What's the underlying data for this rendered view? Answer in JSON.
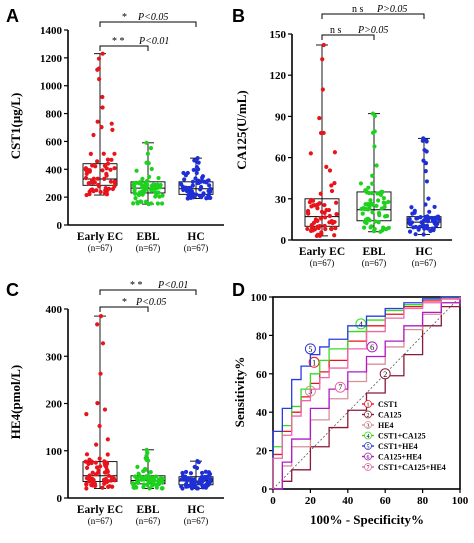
{
  "colors": {
    "early_ec": "#e8141c",
    "ebl": "#1fd11f",
    "hc": "#1e2fd6"
  },
  "panels": {
    "A": {
      "letter": "A",
      "ylabel": "CST1(μg/L)",
      "sig_outer": {
        "stars": "*",
        "p": "P<0.05"
      },
      "sig_inner": {
        "stars": "* *",
        "p": "P<0.01"
      }
    },
    "B": {
      "letter": "B",
      "ylabel": "CA125(U/mL)",
      "sig_outer": {
        "stars": "n s",
        "p": "P>0.05"
      },
      "sig_inner": {
        "stars": "n s",
        "p": "P>0.05"
      }
    },
    "C": {
      "letter": "C",
      "ylabel": "HE4(pmol/L)",
      "sig_outer": {
        "stars": "* *",
        "p": "P<0.01"
      },
      "sig_inner": {
        "stars": "*",
        "p": "P<0.05"
      }
    },
    "D": {
      "letter": "D",
      "xlabel": "100% - Specificity%",
      "ylabel": "Sensitivity%"
    }
  },
  "groups": [
    {
      "name": "Early EC",
      "n": "(n=67)"
    },
    {
      "name": "EBL",
      "n": "(n=67)"
    },
    {
      "name": "HC",
      "n": "(n=67)"
    }
  ],
  "chart_data": [
    {
      "type": "scatter",
      "title": "",
      "ylabel": "CST1(μg/L)",
      "categories": [
        "Early EC",
        "EBL",
        "HC"
      ],
      "ylim": [
        0,
        1400
      ],
      "yticks": [
        0,
        200,
        400,
        600,
        800,
        1000,
        1200,
        1400
      ],
      "series": [
        {
          "name": "Early EC",
          "box": {
            "min": 215,
            "q1": 285,
            "median": 330,
            "q3": 440,
            "max": 1230
          }
        },
        {
          "name": "EBL",
          "box": {
            "min": 150,
            "q1": 230,
            "median": 265,
            "q3": 310,
            "max": 590
          }
        },
        {
          "name": "HC",
          "box": {
            "min": 190,
            "q1": 220,
            "median": 260,
            "q3": 310,
            "max": 480
          }
        }
      ],
      "annotations": [
        "* P<0.05",
        "* * P<0.01"
      ]
    },
    {
      "type": "scatter",
      "title": "",
      "ylabel": "CA125(U/mL)",
      "categories": [
        "Early EC",
        "EBL",
        "HC"
      ],
      "ylim": [
        0,
        150
      ],
      "yticks": [
        0,
        30,
        60,
        90,
        120,
        150
      ],
      "series": [
        {
          "name": "Early EC",
          "box": {
            "min": 3,
            "q1": 10,
            "median": 17,
            "q3": 30,
            "max": 142
          }
        },
        {
          "name": "EBL",
          "box": {
            "min": 6,
            "q1": 14,
            "median": 22,
            "q3": 35,
            "max": 92
          }
        },
        {
          "name": "HC",
          "box": {
            "min": 4,
            "q1": 9,
            "median": 13,
            "q3": 17,
            "max": 74
          }
        }
      ],
      "annotations": [
        "n s P>0.05",
        "n s P>0.05"
      ]
    },
    {
      "type": "scatter",
      "title": "",
      "ylabel": "HE4(pmol/L)",
      "categories": [
        "Early EC",
        "EBL",
        "HC"
      ],
      "ylim": [
        0,
        400
      ],
      "yticks": [
        0,
        100,
        200,
        300,
        400
      ],
      "series": [
        {
          "name": "Early EC",
          "box": {
            "min": 20,
            "q1": 35,
            "median": 47,
            "q3": 77,
            "max": 385
          }
        },
        {
          "name": "EBL",
          "box": {
            "min": 20,
            "q1": 30,
            "median": 37,
            "q3": 47,
            "max": 102
          }
        },
        {
          "name": "HC",
          "box": {
            "min": 20,
            "q1": 28,
            "median": 36,
            "q3": 45,
            "max": 78
          }
        }
      ],
      "annotations": [
        "* * P<0.01",
        "* P<0.05"
      ]
    },
    {
      "type": "line",
      "title": "",
      "xlabel": "100% - Specificity%",
      "ylabel": "Sensitivity%",
      "xlim": [
        0,
        100
      ],
      "ylim": [
        0,
        100
      ],
      "ticks": [
        0,
        20,
        40,
        60,
        80,
        100
      ],
      "series": [
        {
          "name": "CST1",
          "marker": "1",
          "color": "#e8141c",
          "x": [
            0,
            0,
            5,
            10,
            15,
            20,
            25,
            30,
            40,
            50,
            60,
            70,
            80,
            90,
            100
          ],
          "y": [
            0,
            18,
            30,
            40,
            48,
            55,
            61,
            67,
            77,
            85,
            91,
            95,
            98,
            99,
            100
          ]
        },
        {
          "name": "CA125",
          "marker": "2",
          "color": "#8b1a3a",
          "x": [
            0,
            5,
            10,
            20,
            30,
            40,
            50,
            60,
            70,
            80,
            90,
            100
          ],
          "y": [
            0,
            4,
            10,
            22,
            32,
            41,
            50,
            59,
            70,
            85,
            95,
            100
          ]
        },
        {
          "name": "HE4",
          "marker": "3",
          "color": "#d89098",
          "x": [
            0,
            5,
            10,
            20,
            30,
            40,
            50,
            60,
            70,
            80,
            90,
            100
          ],
          "y": [
            0,
            12,
            22,
            36,
            47,
            56,
            65,
            74,
            83,
            91,
            97,
            100
          ]
        },
        {
          "name": "CST1+CA125",
          "marker": "4",
          "color": "#33dd22",
          "x": [
            0,
            0,
            5,
            10,
            15,
            20,
            25,
            30,
            40,
            50,
            60,
            70,
            80,
            90,
            100
          ],
          "y": [
            0,
            22,
            33,
            43,
            52,
            60,
            67,
            73,
            82,
            88,
            93,
            96,
            99,
            100,
            100
          ]
        },
        {
          "name": "CST1+HE4",
          "marker": "5",
          "color": "#2a3be0",
          "x": [
            0,
            0,
            5,
            10,
            15,
            20,
            25,
            30,
            40,
            50,
            60,
            70,
            80,
            90,
            100
          ],
          "y": [
            0,
            30,
            42,
            57,
            64,
            70,
            74,
            78,
            85,
            90,
            94,
            97,
            99,
            100,
            100
          ]
        },
        {
          "name": "CA125+HE4",
          "marker": "6",
          "color": "#b01ac8",
          "x": [
            0,
            5,
            10,
            20,
            30,
            40,
            50,
            60,
            70,
            80,
            90,
            100
          ],
          "y": [
            0,
            14,
            26,
            42,
            52,
            61,
            69,
            77,
            85,
            92,
            97,
            100
          ]
        },
        {
          "name": "CST1+CA125+HE4",
          "marker": "7",
          "color": "#ee66aa",
          "x": [
            0,
            0,
            5,
            10,
            15,
            20,
            25,
            30,
            40,
            50,
            60,
            70,
            80,
            90,
            100
          ],
          "y": [
            0,
            16,
            28,
            38,
            46,
            52,
            58,
            63,
            73,
            82,
            89,
            94,
            97,
            99,
            100
          ]
        }
      ]
    }
  ]
}
